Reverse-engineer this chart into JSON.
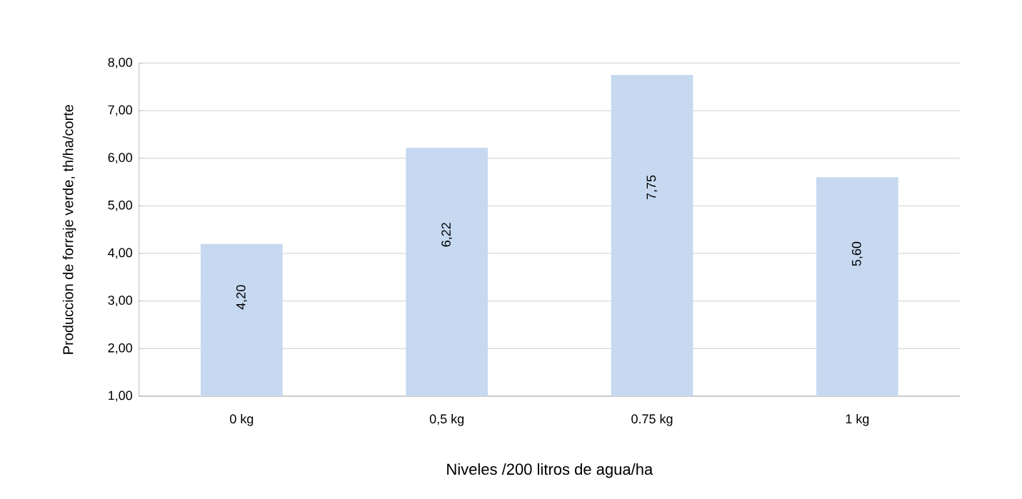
{
  "chart_data": {
    "type": "bar",
    "xlabel": "Niveles /200 litros de agua/ha",
    "ylabel": "Produccion de forraje verde, th/ha/corte",
    "categories": [
      "0 kg",
      "0,5 kg",
      "0.75 kg",
      "1 kg"
    ],
    "values": [
      4.2,
      6.22,
      7.75,
      5.6
    ],
    "value_labels": [
      "4,20",
      "6,22",
      "7,75",
      "5,60"
    ],
    "color": "#c6d9f1",
    "ylim": [
      1,
      8
    ],
    "yticks": [
      {
        "value": 1,
        "label": "1,00"
      },
      {
        "value": 2,
        "label": "2,00"
      },
      {
        "value": 3,
        "label": "3,00"
      },
      {
        "value": 4,
        "label": "4,00"
      },
      {
        "value": 5,
        "label": "5,00"
      },
      {
        "value": 6,
        "label": "6,00"
      },
      {
        "value": 7,
        "label": "7,00"
      },
      {
        "value": 8,
        "label": "8,00"
      }
    ],
    "grid": "y"
  }
}
